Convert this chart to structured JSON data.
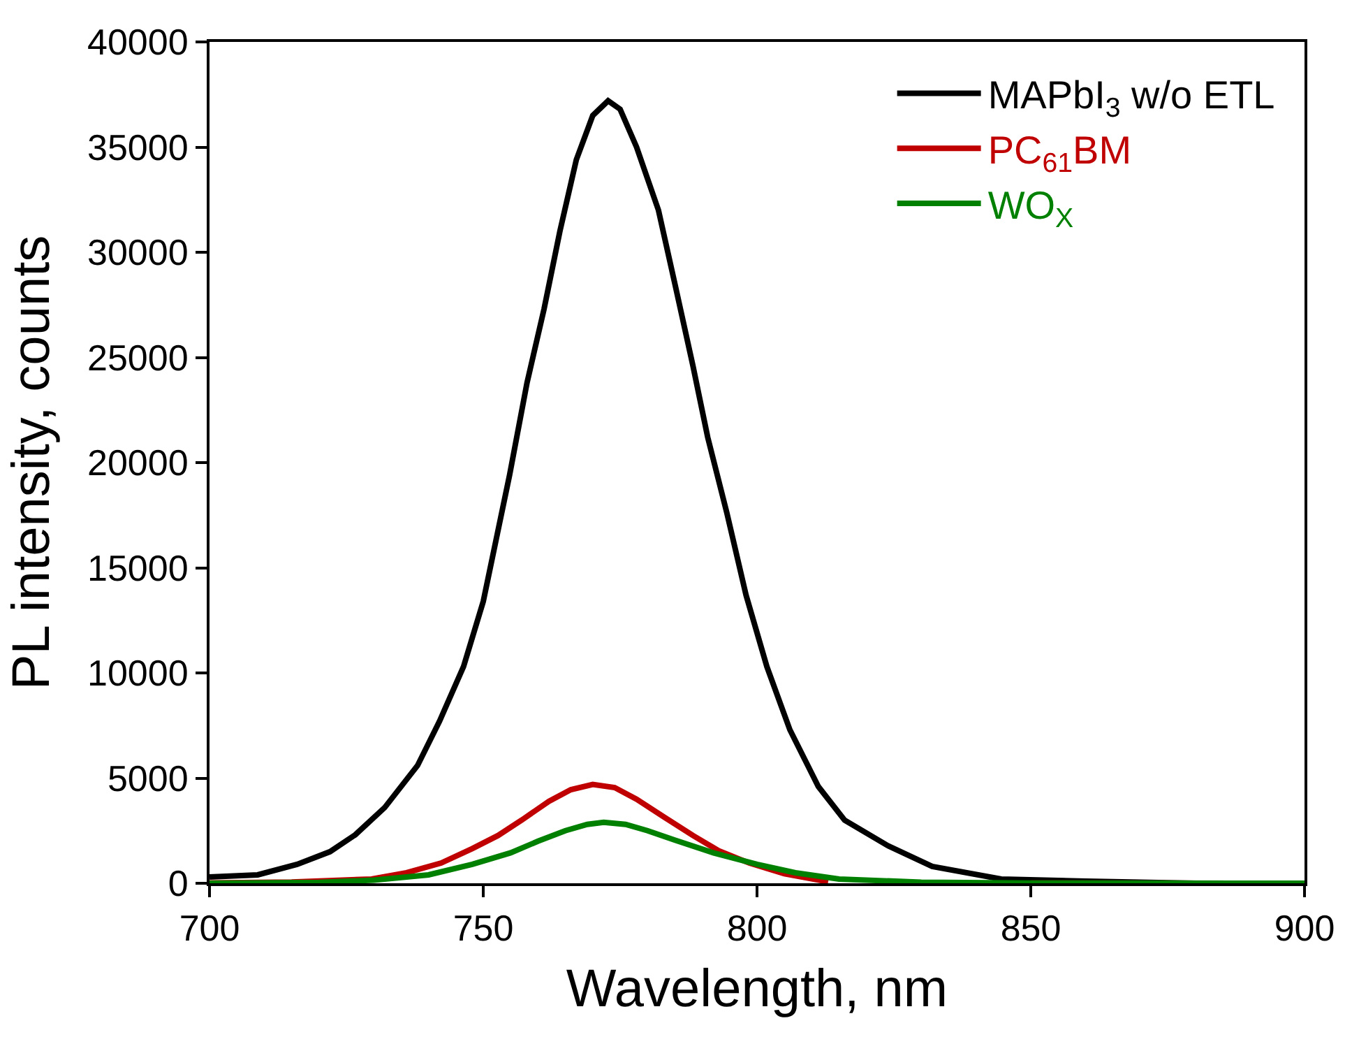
{
  "chart_data": {
    "type": "line",
    "xlabel": "Wavelength, nm",
    "ylabel": "PL intensity, counts",
    "xlim": [
      700,
      900
    ],
    "xticks": [
      700,
      750,
      800,
      850,
      900
    ],
    "ylim": [
      0,
      40000
    ],
    "yticks": [
      0,
      5000,
      10000,
      15000,
      20000,
      25000,
      30000,
      35000,
      40000
    ],
    "legend": "top right",
    "marker": "none",
    "line_style": "solid",
    "series": [
      {
        "name": "MAPbI$_{3}$ w/o ETL",
        "color": "#000000",
        "x": [
          700,
          708.8,
          716,
          722,
          726.6,
          732,
          738,
          742,
          746.4,
          750,
          754.8,
          758,
          761.1,
          764,
          767,
          770,
          772.8,
          775,
          778,
          782,
          785,
          788.3,
          791,
          794.5,
          798,
          801.8,
          806,
          811.2,
          816,
          823.8,
          832,
          844.6,
          860,
          880,
          900
        ],
        "values": [
          300,
          400,
          900,
          1500,
          2300,
          3600,
          5600,
          7700,
          10300,
          13400,
          19400,
          23800,
          27300,
          31000,
          34400,
          36500,
          37200,
          36800,
          35000,
          32000,
          28500,
          24600,
          21200,
          17600,
          13700,
          10300,
          7300,
          4600,
          3000,
          1800,
          800,
          200,
          100,
          0,
          0
        ]
      },
      {
        "name": "PC$_{61}$BM",
        "color": "#c00000",
        "x": [
          700,
          715,
          729.6,
          736,
          742.3,
          748,
          752.7,
          757,
          762,
          766,
          770,
          774,
          778,
          783,
          788.3,
          793,
          798.6,
          805,
          813,
          825,
          850,
          900
        ],
        "values": [
          20,
          60,
          200,
          500,
          960,
          1650,
          2270,
          3000,
          3900,
          4450,
          4700,
          4550,
          4000,
          3150,
          2270,
          1550,
          960,
          450,
          70,
          null,
          10,
          0
        ]
      },
      {
        "name": "WO$_{X}$",
        "color": "#008000",
        "x": [
          700,
          720,
          730,
          740,
          748,
          755,
          760,
          765,
          769,
          772,
          776,
          780,
          785,
          792,
          800,
          807,
          815,
          830,
          850,
          900
        ],
        "values": [
          0,
          40,
          150,
          400,
          900,
          1450,
          2000,
          2500,
          2800,
          2900,
          2800,
          2500,
          2050,
          1450,
          900,
          500,
          200,
          50,
          10,
          0
        ]
      }
    ]
  }
}
